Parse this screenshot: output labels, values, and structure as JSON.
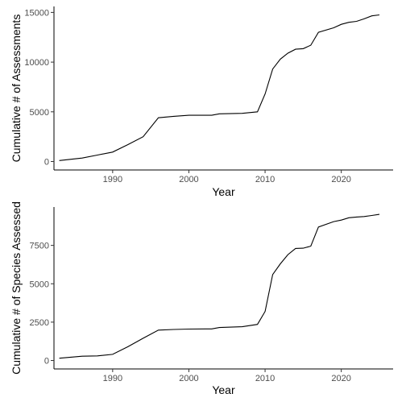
{
  "chart_data": [
    {
      "type": "line",
      "title": "",
      "xlabel": "Year",
      "ylabel": "Cumulative # of Assessments",
      "xlim": [
        1982.3,
        2026.8
      ],
      "ylim": [
        -850,
        15600
      ],
      "x_ticks": [
        1990,
        2000,
        2010,
        2020
      ],
      "y_ticks": [
        0,
        5000,
        10000,
        15000
      ],
      "grid": false,
      "legend": "none",
      "series": [
        {
          "x": [
            1983,
            1986,
            1988,
            1990,
            1992,
            1994,
            1996,
            1998,
            2000,
            2003,
            2004,
            2007,
            2009,
            2010,
            2011,
            2012,
            2013,
            2014,
            2015,
            2016,
            2017,
            2019,
            2020,
            2021,
            2022,
            2023,
            2024,
            2025
          ],
          "y": [
            100,
            350,
            650,
            950,
            1700,
            2500,
            4400,
            4550,
            4650,
            4650,
            4800,
            4850,
            5000,
            6800,
            9300,
            10300,
            10900,
            11300,
            11350,
            11700,
            13000,
            13450,
            13800,
            14000,
            14100,
            14350,
            14650,
            14750
          ]
        }
      ]
    },
    {
      "type": "line",
      "title": "",
      "xlabel": "Year",
      "ylabel": "Cumulative # of Species Assessed",
      "xlim": [
        1982.3,
        2026.8
      ],
      "ylim": [
        -550,
        10000
      ],
      "x_ticks": [
        1990,
        2000,
        2010,
        2020
      ],
      "y_ticks": [
        0,
        2500,
        5000,
        7500
      ],
      "grid": false,
      "legend": "none",
      "series": [
        {
          "x": [
            1983,
            1986,
            1988,
            1990,
            1992,
            1994,
            1996,
            1998,
            2000,
            2003,
            2004,
            2007,
            2009,
            2010,
            2011,
            2012,
            2013,
            2014,
            2015,
            2016,
            2017,
            2019,
            2020,
            2021,
            2022,
            2023,
            2024,
            2025
          ],
          "y": [
            150,
            280,
            300,
            400,
            900,
            1450,
            1980,
            2020,
            2050,
            2060,
            2150,
            2200,
            2350,
            3200,
            5600,
            6300,
            6900,
            7300,
            7320,
            7450,
            8700,
            9050,
            9150,
            9300,
            9350,
            9380,
            9450,
            9520
          ]
        }
      ]
    }
  ]
}
